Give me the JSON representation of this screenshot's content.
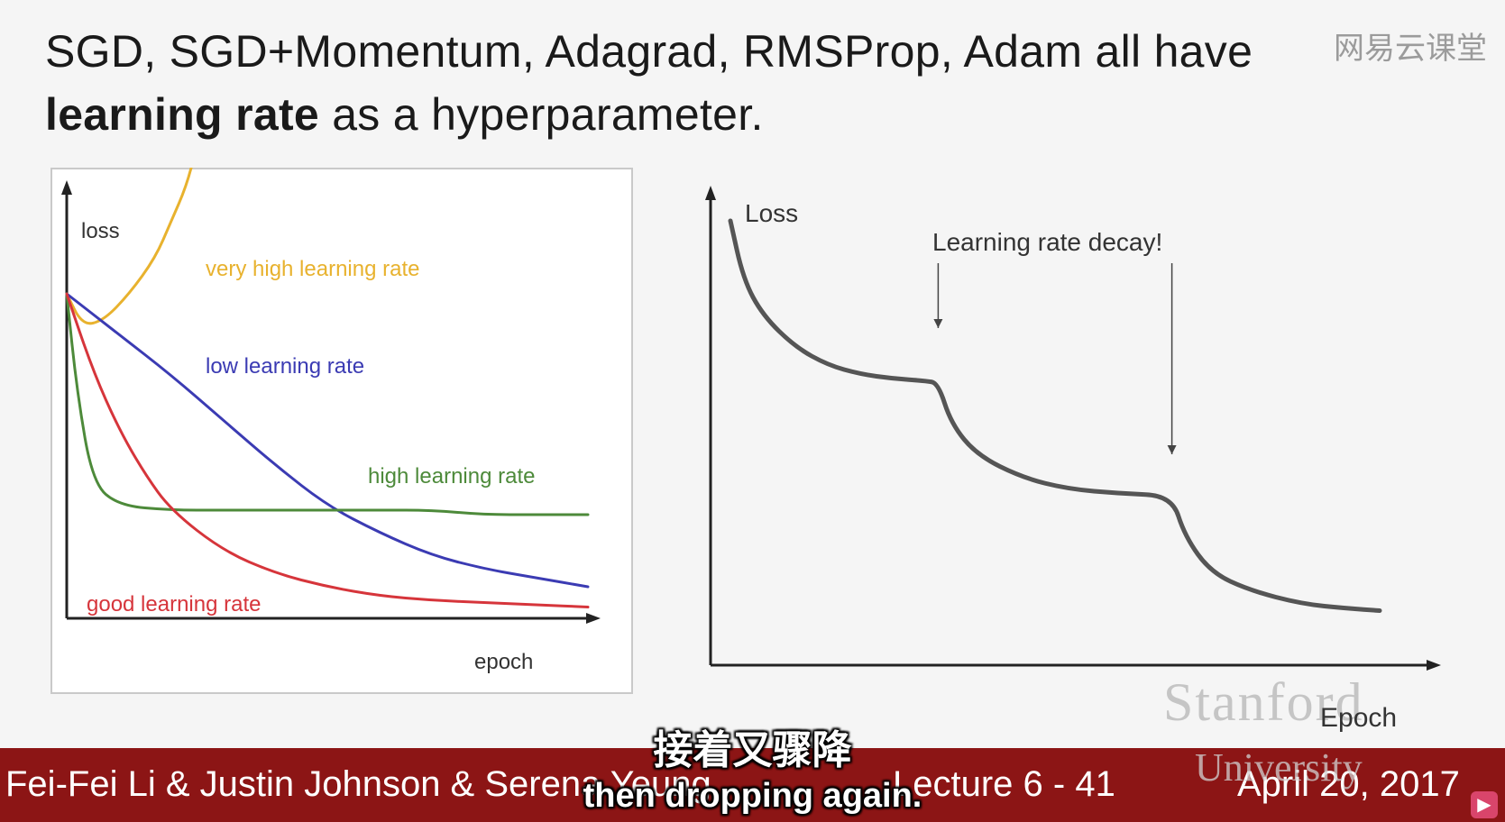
{
  "slide": {
    "title_line1": "SGD, SGD+Momentum, Adagrad, RMSProp, Adam all have",
    "title_line2_bold": "learning rate",
    "title_line2_rest": " as a hyperparameter.",
    "watermark_top": "网易云课堂"
  },
  "chart_data": [
    {
      "type": "line",
      "ylabel": "loss",
      "xlabel": "epoch",
      "series": [
        {
          "name": "very high learning rate",
          "color": "#e8b22e",
          "x": [
            0,
            0.03,
            0.07,
            0.12,
            0.17,
            0.2,
            0.23,
            0.25,
            0.26
          ],
          "y": [
            0.72,
            0.65,
            0.66,
            0.72,
            0.8,
            0.88,
            0.96,
            1.05,
            1.12
          ]
        },
        {
          "name": "low learning rate",
          "color": "#3b3bb3",
          "x": [
            0,
            0.1,
            0.2,
            0.3,
            0.4,
            0.5,
            0.6,
            0.7,
            0.8,
            0.9,
            1.0
          ],
          "y": [
            0.72,
            0.63,
            0.54,
            0.44,
            0.34,
            0.25,
            0.19,
            0.14,
            0.11,
            0.09,
            0.07
          ]
        },
        {
          "name": "high learning rate",
          "color": "#4d8a3a",
          "x": [
            0,
            0.02,
            0.05,
            0.1,
            0.2,
            0.3,
            0.4,
            0.5,
            0.6,
            0.7,
            0.8,
            0.9,
            1.0
          ],
          "y": [
            0.72,
            0.5,
            0.3,
            0.25,
            0.24,
            0.24,
            0.24,
            0.24,
            0.24,
            0.24,
            0.23,
            0.23,
            0.23
          ]
        },
        {
          "name": "good learning rate",
          "color": "#d6353b",
          "x": [
            0,
            0.05,
            0.1,
            0.15,
            0.2,
            0.3,
            0.4,
            0.5,
            0.6,
            0.7,
            0.8,
            0.9,
            1.0
          ],
          "y": [
            0.72,
            0.55,
            0.42,
            0.32,
            0.24,
            0.15,
            0.1,
            0.07,
            0.05,
            0.04,
            0.035,
            0.03,
            0.025
          ]
        }
      ]
    },
    {
      "type": "line",
      "ylabel": "Loss",
      "xlabel": "Epoch",
      "annotation": "Learning rate decay!",
      "decay_points_x": [
        0.32,
        0.68
      ],
      "series": [
        {
          "color": "#555555",
          "x": [
            0,
            0.02,
            0.05,
            0.1,
            0.15,
            0.2,
            0.25,
            0.3,
            0.32,
            0.34,
            0.38,
            0.45,
            0.52,
            0.6,
            0.68,
            0.7,
            0.74,
            0.8,
            0.88,
            0.95,
            1.0
          ],
          "y": [
            0.95,
            0.82,
            0.74,
            0.67,
            0.63,
            0.61,
            0.6,
            0.595,
            0.59,
            0.5,
            0.43,
            0.38,
            0.355,
            0.345,
            0.34,
            0.25,
            0.17,
            0.13,
            0.1,
            0.09,
            0.085
          ]
        }
      ]
    }
  ],
  "footer": {
    "authors": "Fei-Fei Li & Justin Johnson & Serena Yeung",
    "lecture": "Lecture 6 - 41",
    "date": "April 20, 2017"
  },
  "watermark": {
    "line1": "Stanford",
    "line2": "University"
  },
  "subtitles": {
    "chinese": "接着又骤降",
    "english": "then dropping again."
  },
  "colors": {
    "footer_bg": "#8c1515"
  }
}
